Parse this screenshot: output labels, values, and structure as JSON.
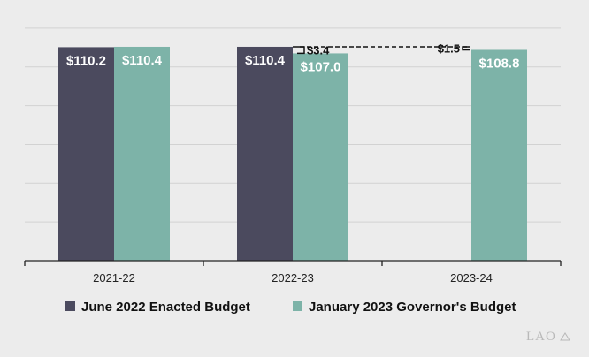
{
  "chart_data": {
    "type": "bar",
    "categories": [
      "2021-22",
      "2022-23",
      "2023-24"
    ],
    "series": [
      {
        "name": "June 2022 Enacted Budget",
        "color": "#4b4a5e",
        "values": [
          110.2,
          110.4,
          null
        ],
        "labels": [
          "$110.2",
          "$110.4",
          ""
        ]
      },
      {
        "name": "January 2023 Governor's Budget",
        "color": "#7db3a8",
        "values": [
          110.4,
          107.0,
          108.8
        ],
        "labels": [
          "$110.4",
          "$107.0",
          "$108.8"
        ]
      }
    ],
    "ylim": [
      0,
      130
    ],
    "grid": true,
    "legend_position": "bottom",
    "annotations": [
      {
        "category": "2022-23",
        "label": "$3.4",
        "from_value": 110.4,
        "to_value": 107.0
      },
      {
        "category": "2023-24",
        "label": "$1.5",
        "from_value": 110.4,
        "to_value": 108.8
      }
    ]
  },
  "logo": {
    "text": "LAO"
  }
}
